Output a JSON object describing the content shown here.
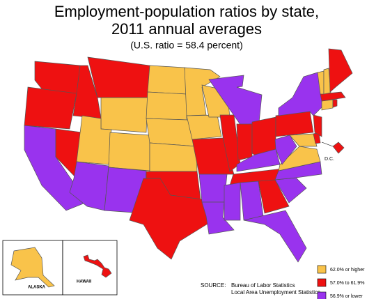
{
  "map": {
    "title": [
      "Employment-population ratios by state,",
      "2011 annual averages"
    ],
    "subtitle": "(U.S. ratio = 58.4 percent)",
    "legend": [
      {
        "label": "62.0% or higher",
        "color": "#f9c34a"
      },
      {
        "label": "57.0% to 61.9%",
        "color": "#ee1111"
      },
      {
        "label": "56.9% or lower",
        "color": "#9933ee"
      }
    ],
    "regions": [
      1,
      1,
      2,
      1,
      1,
      1,
      0,
      0,
      2,
      0,
      2,
      0,
      0,
      0,
      0,
      1,
      1,
      0,
      0,
      1,
      2,
      2,
      0,
      1,
      2,
      1,
      1,
      2,
      1,
      2,
      2,
      1,
      2,
      2,
      2,
      0,
      2,
      1,
      2,
      0,
      1,
      1,
      0,
      1,
      1,
      0,
      0,
      1,
      1,
      0,
      1
    ],
    "insets": {
      "alaska": "ALASKA",
      "hawaii": "HAWAII",
      "dc": "D.C."
    },
    "source": {
      "label": "SOURCE:",
      "lines": [
        "Bureau of Labor Statistics",
        "Local Area Unemployment Statistics"
      ]
    }
  }
}
